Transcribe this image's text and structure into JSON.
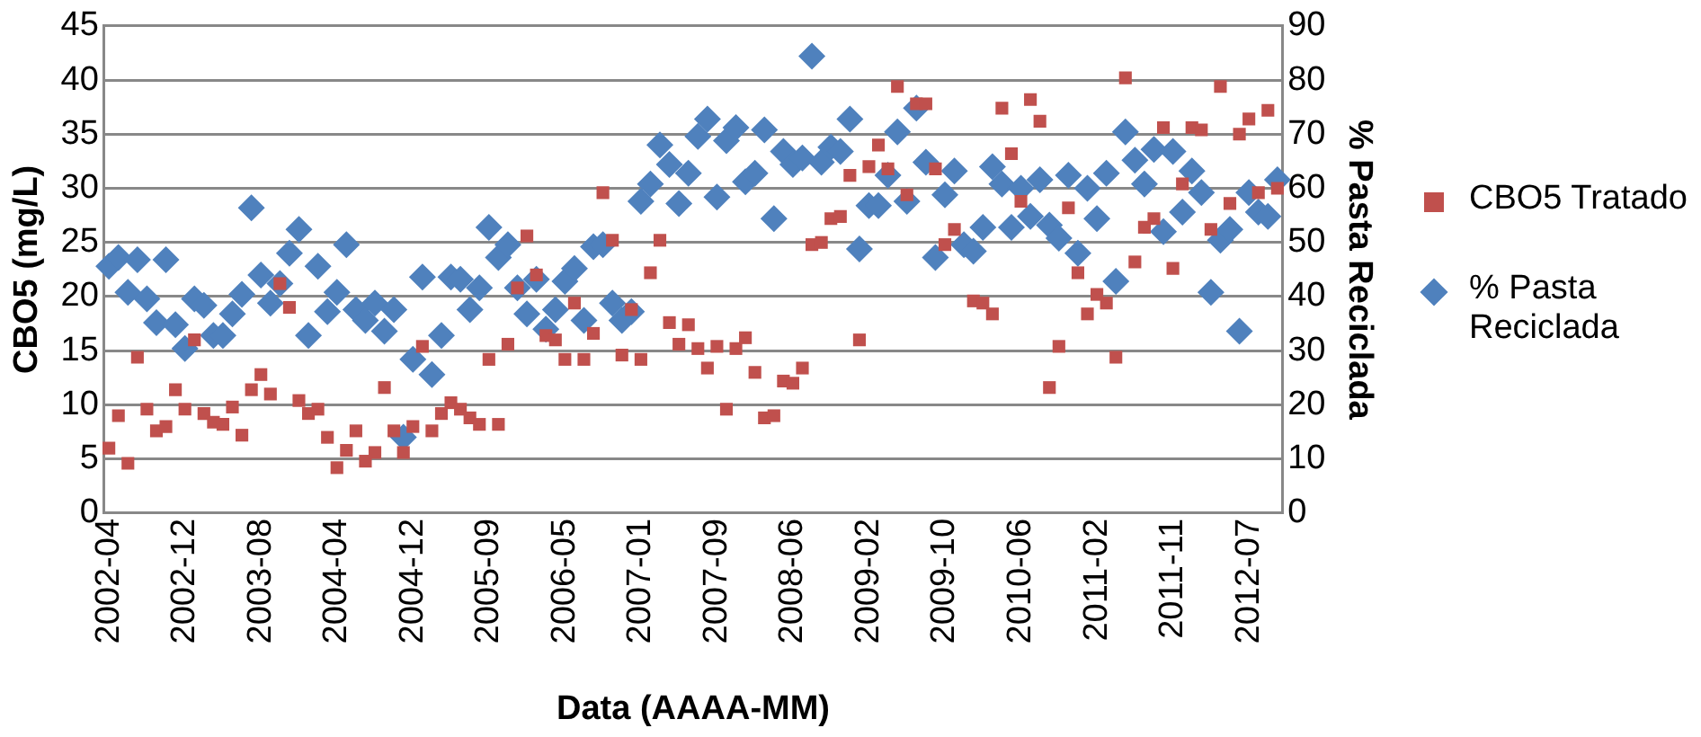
{
  "chart_data": {
    "type": "scatter",
    "xlabel": "Data (AAAA-MM)",
    "ylabel": "CBO5 (mg/L)",
    "y2label": "% Pasta Reciclada",
    "categories": [
      "2002-04",
      null,
      null,
      null,
      null,
      null,
      null,
      null,
      "2002-12",
      null,
      null,
      null,
      null,
      null,
      null,
      null,
      "2003-08",
      null,
      null,
      null,
      null,
      null,
      null,
      null,
      "2004-04",
      null,
      null,
      null,
      null,
      null,
      null,
      null,
      "2004-12",
      null,
      null,
      null,
      null,
      null,
      null,
      null,
      "2005-09",
      null,
      null,
      null,
      null,
      null,
      null,
      null,
      "2006-05",
      null,
      null,
      null,
      null,
      null,
      null,
      null,
      "2007-01",
      null,
      null,
      null,
      null,
      null,
      null,
      null,
      "2007-09",
      null,
      null,
      null,
      null,
      null,
      null,
      null,
      "2008-06",
      null,
      null,
      null,
      null,
      null,
      null,
      null,
      "2009-02",
      null,
      null,
      null,
      null,
      null,
      null,
      null,
      "2009-10",
      null,
      null,
      null,
      null,
      null,
      null,
      null,
      "2010-06",
      null,
      null,
      null,
      null,
      null,
      null,
      null,
      "2011-02",
      null,
      null,
      null,
      null,
      null,
      null,
      null,
      "2011-11",
      null,
      null,
      null,
      null,
      null,
      null,
      null,
      "2012-07",
      null,
      null,
      null
    ],
    "series": [
      {
        "name": "CBO5 Tratado",
        "color": "#c0504d",
        "marker": "square",
        "values": [
          6.0,
          9.0,
          4.6,
          14.4,
          9.6,
          7.6,
          8.0,
          11.4,
          9.6,
          16.0,
          9.2,
          8.4,
          8.2,
          9.8,
          7.2,
          11.4,
          12.8,
          11.0,
          21.2,
          19.0,
          10.4,
          9.2,
          9.6,
          7.0,
          4.2,
          5.8,
          7.6,
          4.8,
          5.6,
          11.6,
          7.6,
          5.6,
          8.0,
          15.4,
          7.6,
          9.2,
          10.2,
          9.6,
          8.8,
          8.2,
          14.2,
          8.2,
          15.6,
          20.8,
          25.6,
          22.0,
          16.4,
          16.0,
          14.2,
          19.4,
          14.2,
          16.6,
          29.6,
          25.2,
          14.6,
          18.8,
          14.2,
          22.2,
          25.2,
          17.6,
          15.6,
          17.4,
          15.2,
          13.4,
          15.4,
          9.6,
          15.2,
          16.2,
          13.0,
          8.8,
          9.0,
          12.2,
          12.0,
          13.4,
          24.8,
          25.0,
          27.2,
          27.4,
          31.2,
          16.0,
          32.0,
          34.0,
          31.8,
          39.4,
          29.4,
          37.8,
          37.8,
          31.8,
          24.8,
          26.2,
          null,
          19.6,
          19.4,
          18.4,
          37.4,
          33.2,
          28.8,
          38.2,
          36.2,
          11.6,
          15.4,
          28.2,
          22.2,
          18.4,
          20.2,
          19.4,
          14.4,
          40.2,
          23.2,
          26.4,
          27.2,
          35.6,
          22.6,
          30.4,
          35.6,
          35.4,
          26.2,
          39.4,
          28.6,
          35.0,
          36.4,
          29.6,
          37.2,
          30.0
        ]
      },
      {
        "name": "% Pasta Reciclada",
        "color": "#4f81bd",
        "marker": "diamond",
        "axis": "y2",
        "values": [
          45.6,
          47.2,
          40.8,
          46.8,
          39.6,
          35.2,
          46.8,
          34.8,
          30.4,
          39.6,
          38.4,
          32.8,
          32.8,
          36.8,
          40.4,
          56.4,
          44.0,
          38.8,
          42.4,
          48.0,
          52.4,
          32.8,
          45.6,
          37.2,
          40.8,
          49.6,
          37.6,
          35.6,
          38.8,
          33.6,
          37.6,
          14.0,
          28.4,
          43.6,
          25.6,
          32.8,
          43.6,
          43.2,
          37.6,
          41.6,
          52.8,
          47.2,
          49.6,
          41.6,
          36.8,
          43.2,
          34.0,
          37.6,
          42.8,
          45.2,
          35.6,
          49.2,
          49.6,
          38.8,
          35.6,
          37.2,
          57.6,
          60.8,
          68.0,
          64.4,
          57.2,
          62.8,
          69.6,
          72.8,
          58.4,
          68.8,
          71.2,
          61.2,
          62.8,
          70.8,
          54.4,
          66.8,
          64.4,
          65.6,
          84.4,
          64.8,
          67.6,
          66.8,
          72.8,
          48.8,
          56.8,
          56.8,
          62.4,
          70.4,
          57.6,
          74.8,
          64.8,
          47.2,
          58.8,
          63.2,
          49.6,
          48.4,
          52.8,
          64.0,
          60.8,
          52.8,
          60.0,
          54.8,
          61.6,
          53.2,
          50.8,
          62.4,
          48.0,
          60.0,
          54.4,
          62.8,
          42.8,
          70.4,
          65.2,
          60.8,
          67.2,
          52.0,
          66.8,
          55.6,
          63.2,
          59.2,
          40.8,
          50.4,
          52.4,
          33.6,
          59.2,
          55.6,
          54.8,
          61.6
        ]
      }
    ],
    "ylim": [
      0,
      45
    ],
    "yticks": [
      0,
      5,
      10,
      15,
      20,
      25,
      30,
      35,
      40,
      45
    ],
    "y2lim": [
      0,
      90
    ],
    "y2ticks": [
      0,
      10,
      20,
      30,
      40,
      50,
      60,
      70,
      80,
      90
    ],
    "grid": "y",
    "legend": "right"
  }
}
